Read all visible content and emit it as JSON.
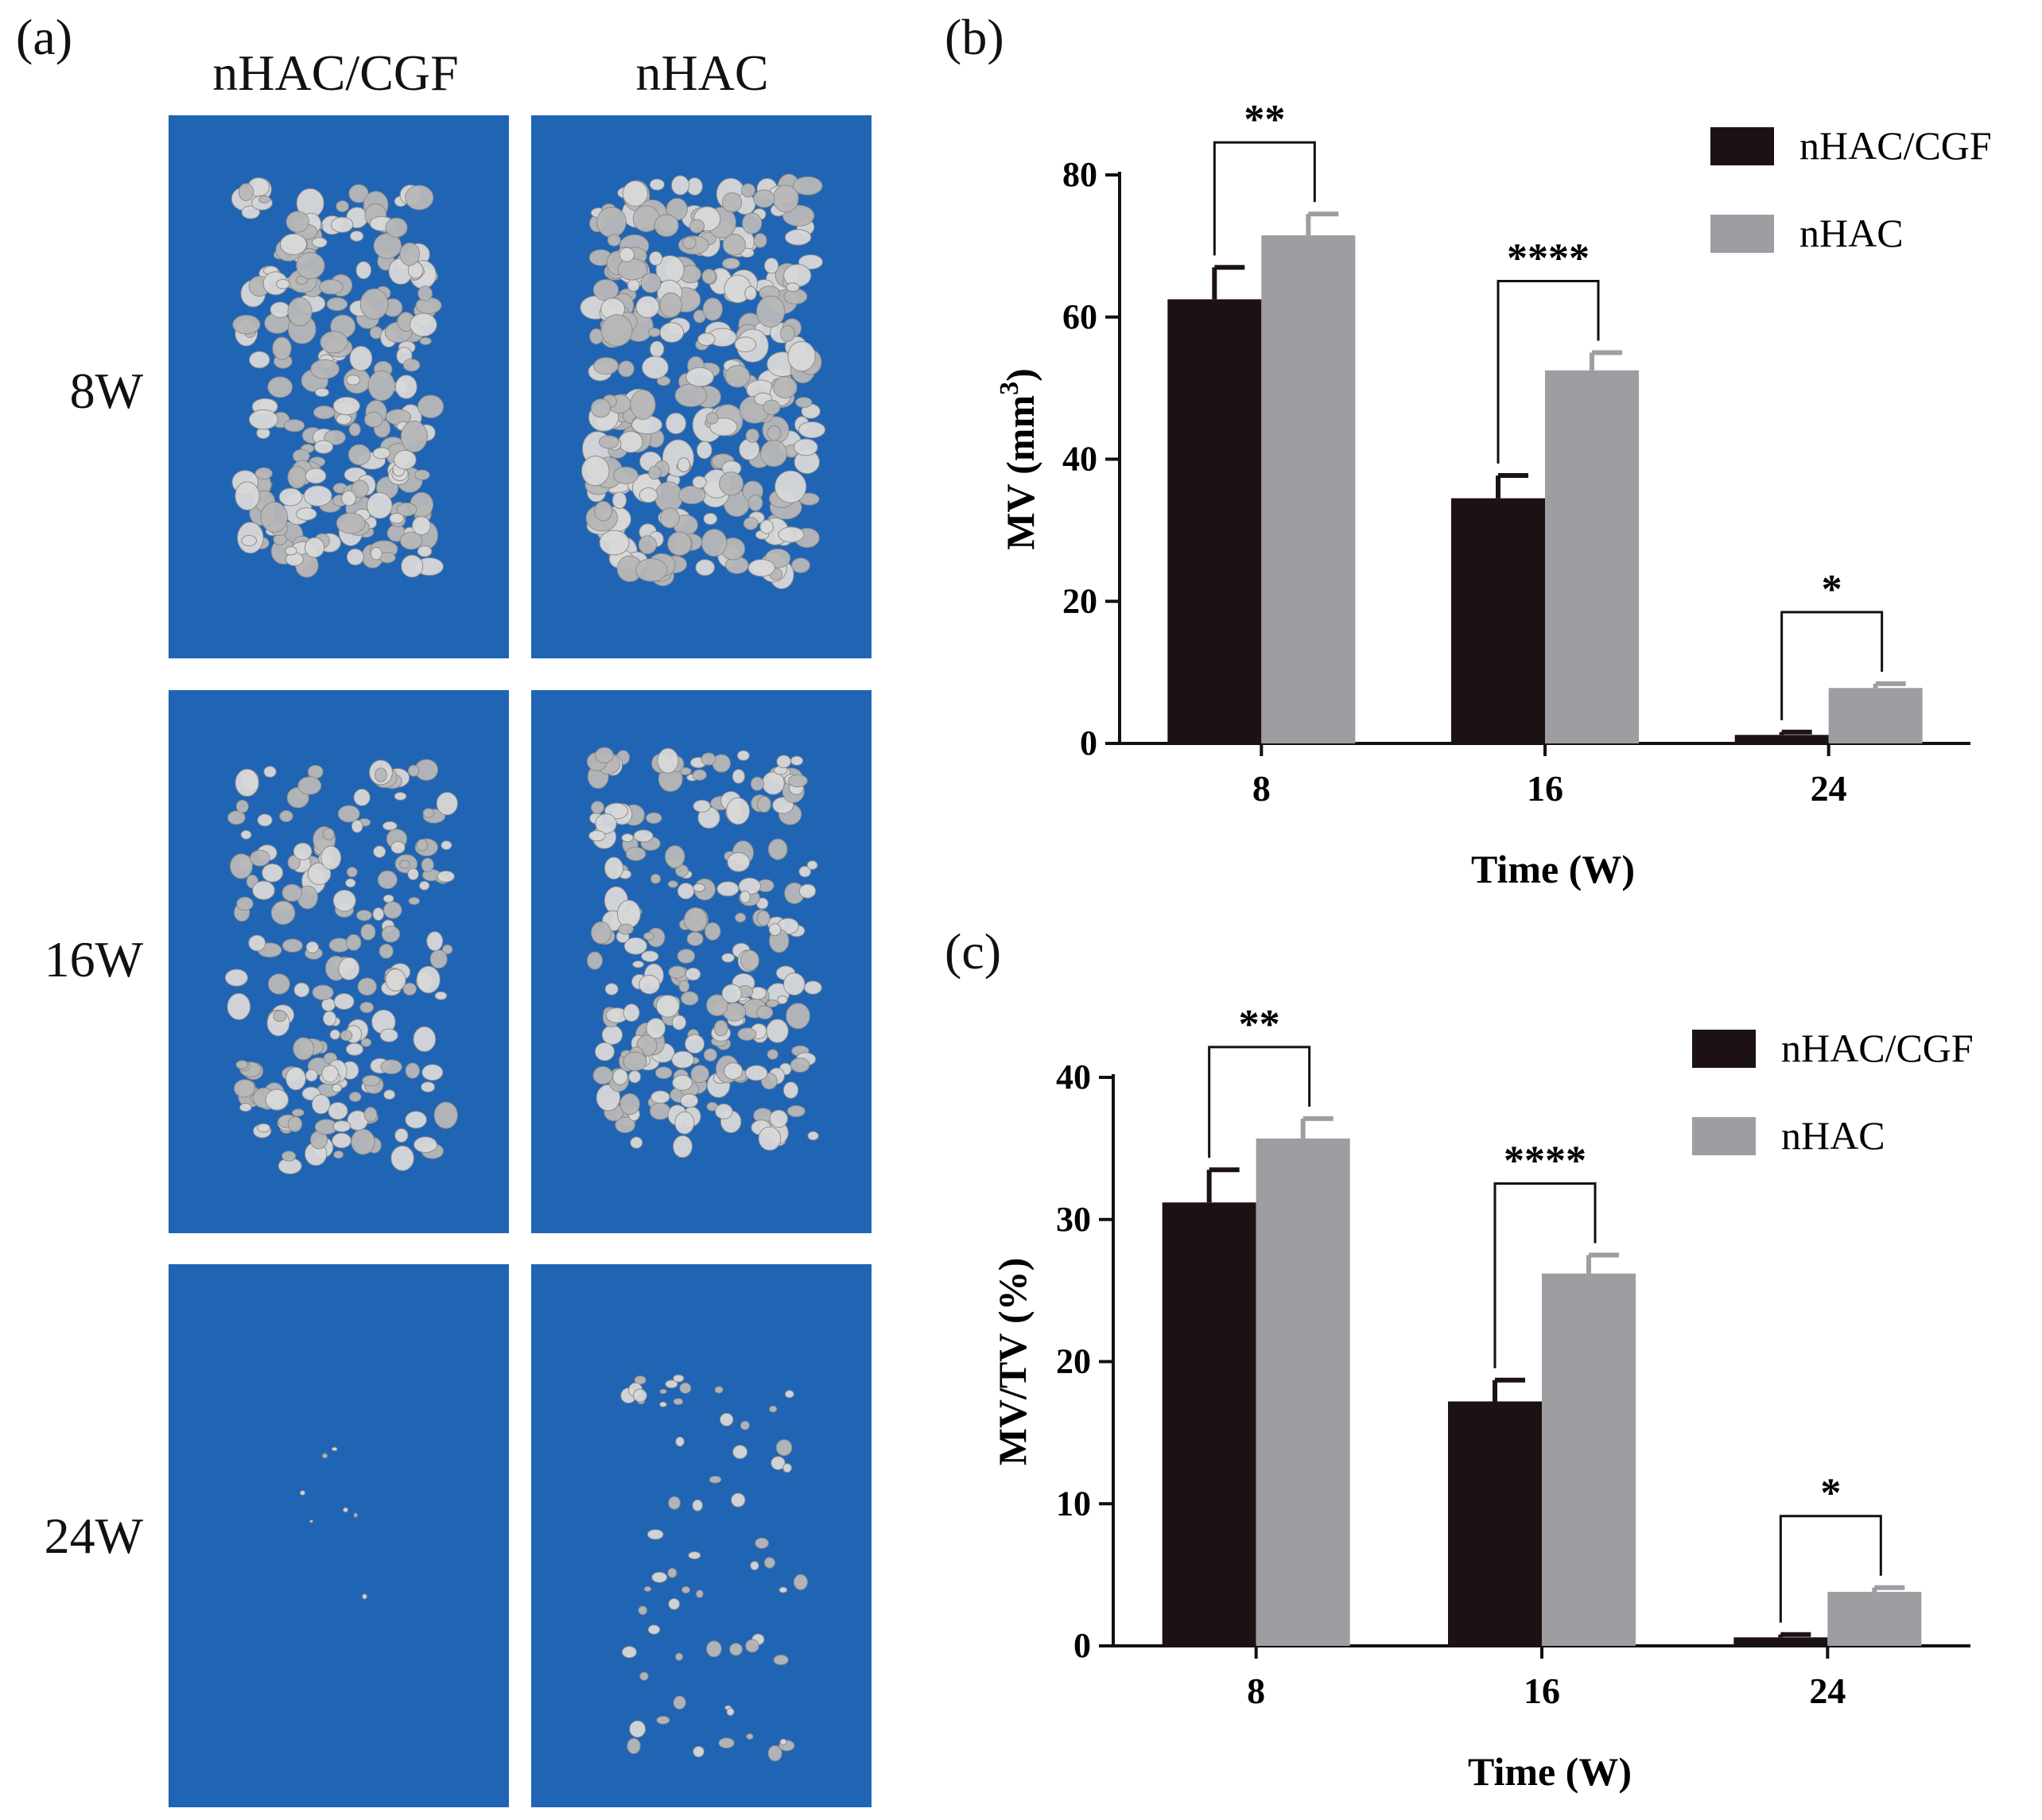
{
  "panel_a": {
    "label": "(a)",
    "columns": [
      "nHAC/CGF",
      "nHAC"
    ],
    "rows": [
      "8W",
      "16W",
      "24W"
    ],
    "tile_color": "#2064b4",
    "particle_color": "#d9d9d9"
  },
  "chart_data": [
    {
      "panel_label": "(b)",
      "type": "bar",
      "categories": [
        "8",
        "16",
        "24"
      ],
      "xlabel": "Time (W)",
      "ylabel": "MV (mm3)",
      "ylim": [
        0,
        80
      ],
      "yticks": [
        0,
        20,
        40,
        60,
        80
      ],
      "series": [
        {
          "name": "nHAC/CGF",
          "color": "#1c1214",
          "values": [
            62.5,
            34.5,
            1.2
          ],
          "errors": [
            4.5,
            3.2,
            0.4
          ]
        },
        {
          "name": "nHAC",
          "color": "#9e9ea2",
          "values": [
            71.5,
            52.5,
            7.8
          ],
          "errors": [
            3.0,
            2.5,
            0.6
          ]
        }
      ],
      "significance": [
        "**",
        "****",
        "*"
      ],
      "legend_position": "top-right"
    },
    {
      "panel_label": "(c)",
      "type": "bar",
      "categories": [
        "8",
        "16",
        "24"
      ],
      "xlabel": "Time (W)",
      "ylabel": "MV/TV (%)",
      "ylim": [
        0,
        40
      ],
      "yticks": [
        0,
        10,
        20,
        30,
        40
      ],
      "series": [
        {
          "name": "nHAC/CGF",
          "color": "#1c1214",
          "values": [
            31.2,
            17.2,
            0.6
          ],
          "errors": [
            2.3,
            1.5,
            0.2
          ]
        },
        {
          "name": "nHAC",
          "color": "#9e9ea2",
          "values": [
            35.7,
            26.2,
            3.8
          ],
          "errors": [
            1.4,
            1.3,
            0.3
          ]
        }
      ],
      "significance": [
        "**",
        "****",
        "*"
      ],
      "legend_position": "top-right"
    }
  ]
}
